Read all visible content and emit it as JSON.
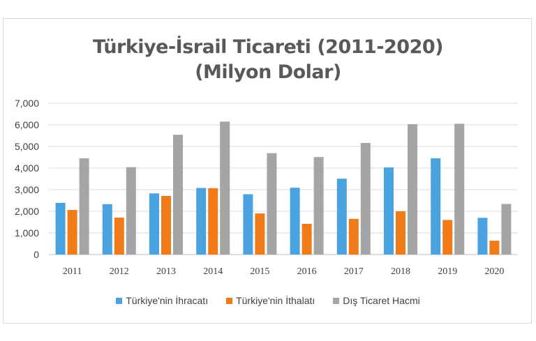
{
  "chart_data": {
    "type": "bar",
    "title_line1": "Türkiye-İsrail Ticareti (2011-2020)",
    "title_line2": "(Milyon Dolar)",
    "categories": [
      "2011",
      "2012",
      "2013",
      "2014",
      "2015",
      "2016",
      "2017",
      "2018",
      "2019",
      "2020"
    ],
    "series": [
      {
        "name": "Türkiye'nin İhracatı",
        "color": "#4aa3df",
        "values": [
          2390,
          2330,
          2830,
          3080,
          2790,
          3090,
          3510,
          4030,
          4450,
          1700
        ]
      },
      {
        "name": "Türkiye'nin İthalatı",
        "color": "#f07b18",
        "values": [
          2060,
          1710,
          2710,
          3070,
          1900,
          1420,
          1650,
          2000,
          1600,
          640
        ]
      },
      {
        "name": "Dış Ticaret Hacmi",
        "color": "#a5a5a5",
        "values": [
          4450,
          4040,
          5540,
          6150,
          4690,
          4510,
          5160,
          6030,
          6050,
          2340
        ]
      }
    ],
    "ylim": [
      0,
      7000
    ],
    "yticks": [
      "0",
      "1,000",
      "2,000",
      "3,000",
      "4,000",
      "5,000",
      "6,000",
      "7,000"
    ],
    "grid": true,
    "legend_position": "bottom"
  }
}
